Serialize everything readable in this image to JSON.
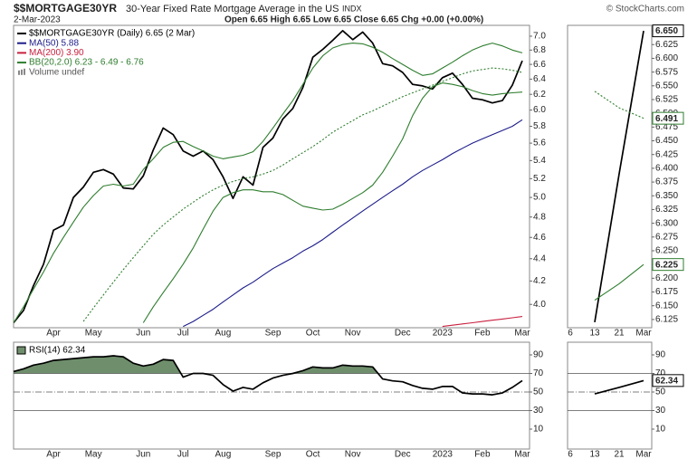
{
  "chart_data": [
    {
      "type": "line",
      "title": "$$MORTGAGE30YR",
      "subtitle": "30-Year Fixed Rate Mortgage Average in the US",
      "exchange": "INDX",
      "source": "© StockCharts.com",
      "date": "2-Mar-2023",
      "quote": "Open 6.65  High 6.65  Low 6.65  Close 6.65  Chg +0.00 (+0.00%)",
      "log_scale": true,
      "categories": [
        null,
        null,
        null,
        null,
        "Apr",
        null,
        null,
        null,
        "May",
        null,
        null,
        null,
        null,
        "Jun",
        null,
        null,
        null,
        "Jul",
        null,
        null,
        null,
        "Aug",
        null,
        null,
        null,
        null,
        "Sep",
        null,
        null,
        null,
        "Oct",
        null,
        null,
        null,
        "Nov",
        null,
        null,
        null,
        null,
        "Dec",
        null,
        null,
        null,
        "2023",
        null,
        null,
        null,
        "Feb",
        null,
        null,
        null,
        "Mar"
      ],
      "ylim": [
        3.81,
        7.16
      ],
      "yticks": [
        {
          "value": 4,
          "label": "4.0"
        },
        4.2,
        4.4,
        4.6,
        4.8,
        {
          "value": 5,
          "label": "5.0"
        },
        5.2,
        5.4,
        5.6,
        5.8,
        {
          "value": 6,
          "label": "6.0"
        },
        6.2,
        6.4,
        6.6,
        6.8,
        {
          "value": 7,
          "label": "7.0"
        }
      ],
      "series": [
        {
          "name": "$$MORTGAGE30YR (Daily) 6.65 (2 Mar)",
          "color": "#000000",
          "values": [
            3.85,
            3.95,
            4.16,
            4.35,
            4.67,
            4.72,
            5.0,
            5.11,
            5.27,
            5.3,
            5.25,
            5.1,
            5.09,
            5.23,
            5.52,
            5.78,
            5.7,
            5.51,
            5.45,
            5.51,
            5.41,
            5.22,
            4.99,
            5.22,
            5.13,
            5.55,
            5.66,
            5.89,
            6.02,
            6.29,
            6.7,
            6.81,
            6.94,
            7.08,
            6.95,
            7.06,
            6.9,
            6.61,
            6.58,
            6.49,
            6.33,
            6.31,
            6.27,
            6.42,
            6.48,
            6.33,
            6.15,
            6.13,
            6.09,
            6.12,
            6.32,
            6.65
          ]
        },
        {
          "name": "MA(50) 5.88",
          "color": "#1c1c8a",
          "values": [
            null,
            null,
            null,
            null,
            null,
            null,
            null,
            null,
            null,
            null,
            null,
            null,
            null,
            null,
            null,
            null,
            null,
            3.82,
            3.86,
            3.91,
            3.96,
            4.02,
            4.08,
            4.14,
            4.19,
            4.25,
            4.31,
            4.36,
            4.41,
            4.47,
            4.52,
            4.58,
            4.65,
            4.72,
            4.79,
            4.86,
            4.93,
            5.0,
            5.07,
            5.14,
            5.22,
            5.29,
            5.35,
            5.41,
            5.48,
            5.54,
            5.6,
            5.65,
            5.7,
            5.75,
            5.8,
            5.88
          ]
        },
        {
          "name": "MA(200) 3.90",
          "color": "#c8203f",
          "values": [
            null,
            null,
            null,
            null,
            null,
            null,
            null,
            null,
            null,
            null,
            null,
            null,
            null,
            null,
            null,
            null,
            null,
            null,
            null,
            null,
            null,
            null,
            null,
            null,
            null,
            null,
            null,
            null,
            null,
            null,
            null,
            null,
            null,
            null,
            null,
            null,
            null,
            null,
            null,
            null,
            null,
            null,
            null,
            3.82,
            3.83,
            3.84,
            3.85,
            3.86,
            3.87,
            3.88,
            3.89,
            3.9
          ]
        },
        {
          "name": "BB(20,2.0) 6.23 - 6.49 - 6.76",
          "color": "#2e7d2e",
          "line_style": "dotted",
          "values": [
            null,
            null,
            null,
            null,
            null,
            null,
            null,
            3.86,
            3.97,
            4.08,
            4.19,
            4.3,
            4.41,
            4.52,
            4.63,
            4.72,
            4.8,
            4.88,
            4.95,
            5.02,
            5.08,
            5.13,
            5.17,
            5.2,
            5.22,
            5.25,
            5.29,
            5.35,
            5.42,
            5.49,
            5.56,
            5.64,
            5.73,
            5.8,
            5.87,
            5.94,
            5.99,
            6.05,
            6.11,
            6.17,
            6.22,
            6.27,
            6.32,
            6.37,
            6.42,
            6.47,
            6.51,
            6.53,
            6.55,
            6.54,
            6.52,
            6.49
          ]
        },
        {
          "color": "#2e7d2e",
          "values": [
            3.85,
            3.98,
            4.13,
            4.28,
            4.45,
            4.6,
            4.75,
            4.9,
            5.02,
            5.12,
            5.14,
            5.12,
            5.14,
            5.3,
            5.42,
            5.55,
            5.61,
            5.62,
            5.56,
            5.51,
            5.45,
            5.42,
            5.44,
            5.46,
            5.5,
            5.62,
            5.78,
            5.95,
            6.12,
            6.33,
            6.55,
            6.72,
            6.83,
            6.88,
            6.9,
            6.89,
            6.84,
            6.77,
            6.68,
            6.6,
            6.52,
            6.45,
            6.47,
            6.55,
            6.63,
            6.72,
            6.8,
            6.86,
            6.9,
            6.86,
            6.8,
            6.76
          ]
        },
        {
          "color": "#2e7d2e",
          "values": [
            null,
            null,
            null,
            null,
            null,
            null,
            null,
            null,
            null,
            null,
            null,
            null,
            null,
            3.85,
            3.98,
            4.1,
            4.22,
            4.35,
            4.5,
            4.68,
            4.86,
            5.0,
            5.05,
            5.08,
            5.08,
            5.06,
            5.06,
            5.03,
            4.97,
            4.91,
            4.89,
            4.87,
            4.88,
            4.93,
            4.99,
            5.05,
            5.13,
            5.27,
            5.45,
            5.65,
            5.93,
            6.15,
            6.3,
            6.35,
            6.33,
            6.3,
            6.25,
            6.21,
            6.19,
            6.21,
            6.22,
            6.23
          ]
        }
      ],
      "volume_label": "Volume undef"
    },
    {
      "type": "line",
      "ylim": [
        -10,
        100
      ],
      "yticks": [
        10,
        30,
        50,
        70,
        90
      ],
      "hlines": [
        {
          "value": 70
        },
        {
          "value": 50,
          "dash": true
        },
        {
          "value": 30
        }
      ],
      "series": [
        {
          "name": "RSI(14) 62.34",
          "color": "#000000",
          "fill_color": "#6f8f6c",
          "fill_above": 70,
          "values": [
            72,
            75,
            79,
            81,
            84,
            85,
            86,
            87,
            88,
            88,
            89,
            88,
            81,
            78,
            80,
            85,
            84,
            66,
            70,
            70,
            68,
            58,
            51,
            55,
            53,
            60,
            65,
            68,
            70,
            73,
            77,
            76,
            76,
            79,
            78,
            78,
            77,
            64,
            62,
            61,
            57,
            54,
            53,
            56,
            56,
            49,
            48,
            48,
            47,
            49,
            55,
            62.34
          ]
        }
      ]
    },
    {
      "type": "line",
      "categories": [
        "6",
        "13",
        "21",
        "Mar"
      ],
      "ylim": [
        6.11,
        6.66
      ],
      "yticks": [
        6.125,
        {
          "value": 6.15,
          "label": "6.150"
        },
        6.175,
        {
          "value": 6.2,
          "label": "6.200"
        },
        6.225,
        {
          "value": 6.25,
          "label": "6.250"
        },
        6.275,
        {
          "value": 6.3,
          "label": "6.300"
        },
        6.325,
        {
          "value": 6.35,
          "label": "6.350"
        },
        6.375,
        {
          "value": 6.4,
          "label": "6.400"
        },
        6.425,
        {
          "value": 6.45,
          "label": "6.450"
        },
        6.475,
        {
          "value": 6.5,
          "label": "6.500"
        },
        6.525,
        {
          "value": 6.55,
          "label": "6.550"
        },
        6.575,
        {
          "value": 6.6,
          "label": "6.600"
        },
        6.625,
        {
          "value": 6.65,
          "label": "6.650"
        }
      ],
      "tag_last": true,
      "series": [
        {
          "color": "#000000",
          "values": [
            null,
            6.12,
            6.39,
            6.65
          ],
          "value_labels": [
            null,
            null,
            null,
            "6.650"
          ]
        },
        {
          "color": "#2e7d2e",
          "line_style": "dotted",
          "values": [
            null,
            6.54,
            6.51,
            6.491
          ]
        },
        {
          "color": "#2e7d2e",
          "values": [
            null,
            6.16,
            6.19,
            6.225
          ]
        }
      ]
    },
    {
      "type": "line",
      "ylim": [
        -10,
        100
      ],
      "yticks": [
        10,
        30,
        50,
        70,
        90
      ],
      "hlines": [
        {
          "value": 70
        },
        {
          "value": 50,
          "dash": true
        },
        {
          "value": 30
        }
      ],
      "tag_last": true,
      "series": [
        {
          "color": "#000000",
          "values": [
            null,
            48,
            55,
            62.34
          ]
        }
      ]
    }
  ]
}
